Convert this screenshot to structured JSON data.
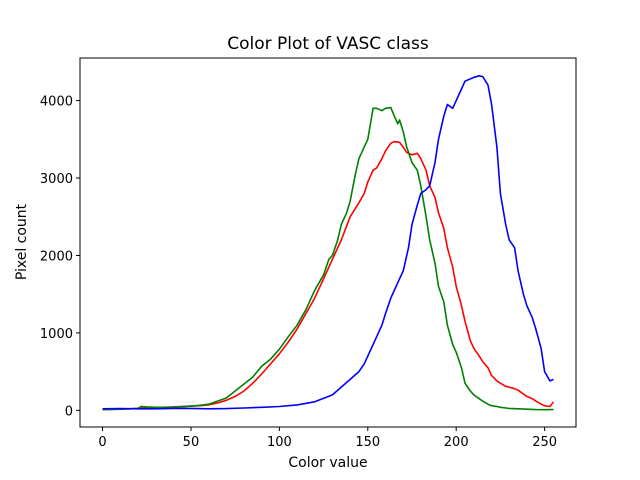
{
  "chart_data": {
    "type": "line",
    "title": "Color Plot of VASC class",
    "xlabel": "Color value",
    "ylabel": "Pixel count",
    "xlim": [
      -12.75,
      267.75
    ],
    "ylim": [
      -215,
      4550
    ],
    "xticks": [
      0,
      50,
      100,
      150,
      200,
      250
    ],
    "yticks": [
      0,
      1000,
      2000,
      3000,
      4000
    ],
    "grid": false,
    "legend": "none",
    "series": [
      {
        "color": "#ff0000",
        "x": [
          0,
          10,
          20,
          30,
          40,
          50,
          55,
          60,
          65,
          70,
          75,
          80,
          85,
          90,
          95,
          100,
          105,
          110,
          115,
          120,
          125,
          130,
          135,
          140,
          145,
          148,
          150,
          153,
          155,
          158,
          160,
          163,
          165,
          168,
          170,
          172,
          175,
          178,
          180,
          183,
          185,
          188,
          190,
          193,
          195,
          198,
          200,
          203,
          205,
          208,
          210,
          213,
          215,
          218,
          220,
          223,
          225,
          228,
          230,
          233,
          235,
          238,
          240,
          243,
          245,
          248,
          250,
          253,
          255
        ],
        "y": [
          10,
          15,
          25,
          35,
          45,
          55,
          60,
          70,
          95,
          130,
          180,
          250,
          350,
          470,
          600,
          730,
          880,
          1050,
          1250,
          1450,
          1700,
          1950,
          2200,
          2500,
          2680,
          2800,
          2950,
          3100,
          3130,
          3250,
          3350,
          3450,
          3470,
          3460,
          3400,
          3330,
          3300,
          3320,
          3250,
          3100,
          2900,
          2750,
          2550,
          2350,
          2100,
          1850,
          1600,
          1350,
          1150,
          900,
          800,
          700,
          630,
          550,
          450,
          380,
          350,
          310,
          300,
          280,
          260,
          210,
          180,
          150,
          120,
          80,
          60,
          50,
          110
        ]
      },
      {
        "color": "#008000",
        "x": [
          0,
          10,
          20,
          22,
          25,
          30,
          40,
          50,
          55,
          60,
          65,
          70,
          75,
          80,
          85,
          90,
          95,
          100,
          105,
          110,
          115,
          120,
          125,
          128,
          130,
          133,
          135,
          138,
          140,
          143,
          145,
          148,
          150,
          153,
          155,
          158,
          160,
          163,
          165,
          167,
          168,
          170,
          172,
          175,
          178,
          180,
          183,
          185,
          188,
          190,
          193,
          195,
          198,
          200,
          203,
          205,
          208,
          210,
          213,
          215,
          218,
          220,
          223,
          225,
          230,
          235,
          240,
          245,
          250,
          255
        ],
        "y": [
          10,
          15,
          25,
          50,
          45,
          40,
          40,
          55,
          65,
          80,
          120,
          160,
          250,
          340,
          430,
          570,
          660,
          790,
          950,
          1100,
          1300,
          1550,
          1750,
          1950,
          2000,
          2200,
          2400,
          2550,
          2700,
          3050,
          3250,
          3400,
          3500,
          3900,
          3900,
          3870,
          3900,
          3910,
          3800,
          3700,
          3750,
          3600,
          3400,
          3200,
          3100,
          2900,
          2500,
          2200,
          1900,
          1600,
          1400,
          1100,
          850,
          750,
          550,
          350,
          250,
          200,
          150,
          120,
          80,
          60,
          50,
          40,
          25,
          20,
          15,
          10,
          8,
          10
        ]
      },
      {
        "color": "#0000ff",
        "x": [
          0,
          10,
          20,
          30,
          40,
          50,
          60,
          70,
          80,
          90,
          100,
          110,
          120,
          130,
          135,
          140,
          145,
          148,
          150,
          153,
          155,
          158,
          160,
          163,
          165,
          168,
          170,
          173,
          175,
          178,
          180,
          183,
          185,
          188,
          190,
          193,
          195,
          198,
          200,
          203,
          205,
          208,
          210,
          213,
          215,
          218,
          220,
          223,
          225,
          228,
          230,
          233,
          235,
          238,
          240,
          243,
          245,
          248,
          250,
          253,
          255
        ],
        "y": [
          20,
          22,
          20,
          20,
          25,
          25,
          20,
          22,
          30,
          40,
          50,
          70,
          110,
          200,
          300,
          400,
          500,
          600,
          700,
          850,
          950,
          1100,
          1250,
          1450,
          1550,
          1700,
          1800,
          2100,
          2400,
          2650,
          2800,
          2850,
          2900,
          3200,
          3500,
          3800,
          3950,
          3900,
          4000,
          4150,
          4250,
          4280,
          4300,
          4320,
          4310,
          4200,
          3950,
          3400,
          2800,
          2400,
          2200,
          2100,
          1800,
          1500,
          1350,
          1200,
          1050,
          800,
          500,
          380,
          400
        ]
      }
    ]
  }
}
